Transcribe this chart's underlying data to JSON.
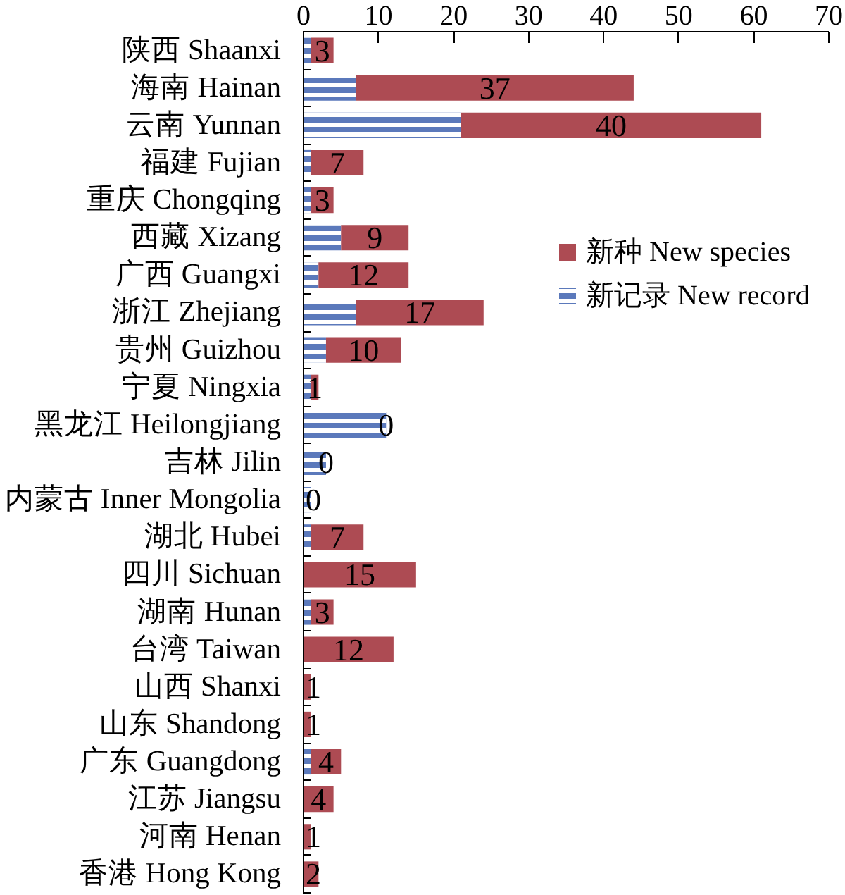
{
  "chart_data": {
    "type": "bar",
    "orientation": "horizontal",
    "stacked": true,
    "categories": [
      "陕西 Shaanxi",
      "海南 Hainan",
      "云南 Yunnan",
      "福建 Fujian",
      "重庆 Chongqing",
      "西藏 Xizang",
      "广西 Guangxi",
      "浙江 Zhejiang",
      "贵州 Guizhou",
      "宁夏 Ningxia",
      "黑龙江 Heilongjiang",
      "吉林 Jilin",
      "内蒙古 Inner Mongolia",
      "湖北 Hubei",
      "四川 Sichuan",
      "湖南 Hunan",
      "台湾 Taiwan",
      "山西 Shanxi",
      "山东 Shandong",
      "广东 Guangdong",
      "江苏 Jiangsu",
      "河南 Henan",
      "香港 Hong Kong"
    ],
    "series": [
      {
        "name": "新记录 New record",
        "color": "#5b79bb",
        "values": [
          1,
          7,
          21,
          1,
          1,
          5,
          2,
          7,
          3,
          1,
          11,
          3,
          1,
          1,
          0,
          1,
          0,
          0,
          0,
          1,
          0,
          0,
          0
        ]
      },
      {
        "name": "新种 New species",
        "color": "#ad4b53",
        "values": [
          3,
          37,
          40,
          7,
          3,
          9,
          12,
          17,
          10,
          1,
          0,
          0,
          0,
          7,
          15,
          3,
          12,
          1,
          1,
          4,
          4,
          1,
          2
        ],
        "value_labels": [
          "3",
          "37",
          "40",
          "7",
          "3",
          "9",
          "12",
          "17",
          "10",
          "1",
          "0",
          "0",
          "0",
          "7",
          "15",
          "3",
          "12",
          "1",
          "1",
          "4",
          "4",
          "1",
          "2"
        ]
      }
    ],
    "xlim": [
      0,
      70
    ],
    "xticks": [
      0,
      10,
      20,
      30,
      40,
      50,
      60,
      70
    ],
    "legend": "right",
    "grid": false
  }
}
